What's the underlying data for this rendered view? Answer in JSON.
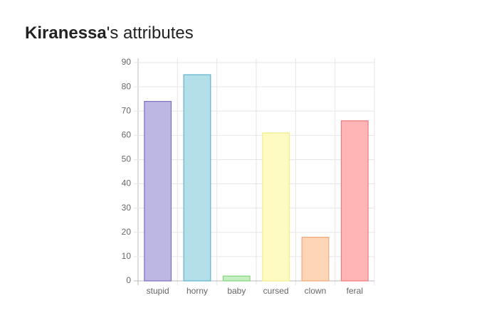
{
  "chart_data": {
    "type": "bar",
    "title_name": "Kiranessa",
    "title_rest": "'s attributes",
    "categories": [
      "stupid",
      "horny",
      "baby",
      "cursed",
      "clown",
      "feral"
    ],
    "values": [
      74,
      85,
      2,
      61,
      18,
      66
    ],
    "colors": [
      "#bdb7e3",
      "#b3dfe9",
      "#c6efc1",
      "#fdfac2",
      "#fdd6b7",
      "#ffb5b5"
    ],
    "border_colors": [
      "#7b70c0",
      "#5db4cd",
      "#80d57b",
      "#f3ec8a",
      "#f2a878",
      "#ee7a7a"
    ],
    "ylim": [
      0,
      90
    ],
    "yticks": [
      0,
      10,
      20,
      30,
      40,
      50,
      60,
      70,
      80,
      90
    ],
    "grid": true
  }
}
